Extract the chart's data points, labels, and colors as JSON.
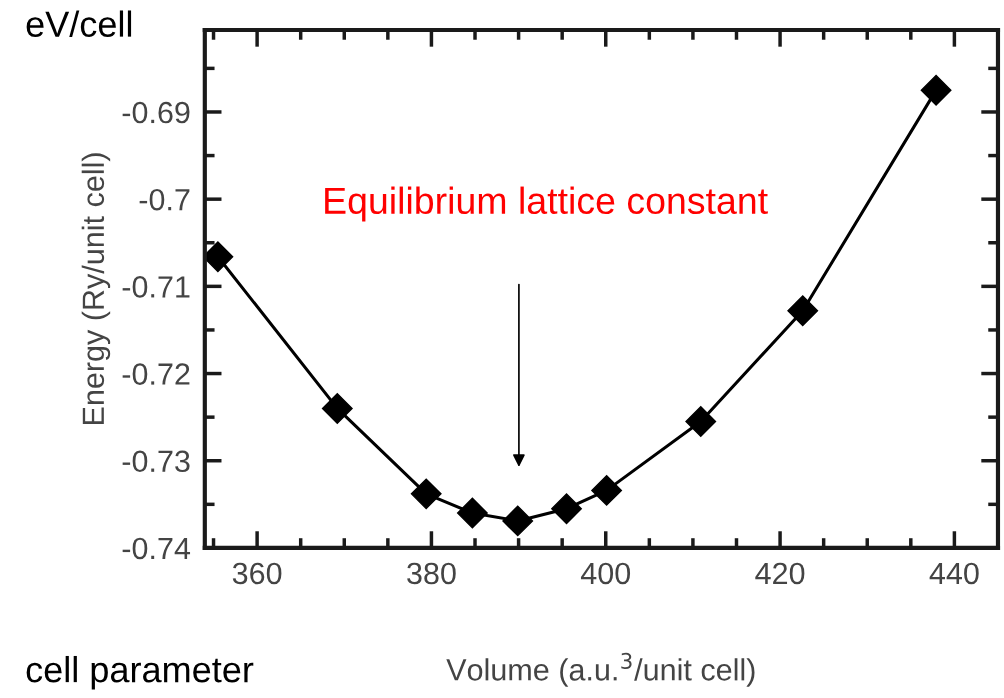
{
  "chart_data": {
    "type": "line",
    "xlabel": "Volume (a.u.$^{3}$/unit cell)",
    "ylabel": "Energy (Ry/unit cell)",
    "x": [
      355.5,
      369.2,
      379.4,
      384.7,
      389.9,
      395.5,
      400.1,
      410.9,
      422.6,
      437.9
    ],
    "series": [
      {
        "color": "#000000",
        "values": [
          -0.7066,
          -0.724,
          -0.7338,
          -0.736,
          -0.7369,
          -0.7355,
          -0.7334,
          -0.7255,
          -0.7128,
          -0.6875
        ]
      }
    ],
    "xlim": [
      354,
      445
    ],
    "ylim": [
      -0.74,
      -0.6806
    ],
    "xticks": [
      {
        "value": 355,
        "label": null
      },
      360,
      {
        "value": 365,
        "label": null
      },
      {
        "value": 370,
        "label": null
      },
      {
        "value": 375,
        "label": null
      },
      380,
      {
        "value": 385,
        "label": null
      },
      {
        "value": 390,
        "label": null
      },
      {
        "value": 395,
        "label": null
      },
      400,
      {
        "value": 405,
        "label": null
      },
      {
        "value": 410,
        "label": null
      },
      {
        "value": 415,
        "label": null
      },
      420,
      {
        "value": 425,
        "label": null
      },
      {
        "value": 430,
        "label": null
      },
      {
        "value": 435,
        "label": null
      },
      440
    ],
    "yticks": [
      -0.74,
      {
        "value": -0.735,
        "label": null
      },
      -0.73,
      {
        "value": -0.725,
        "label": null
      },
      -0.72,
      {
        "value": -0.715,
        "label": null
      },
      -0.71,
      {
        "value": -0.705,
        "label": null
      },
      -0.7,
      {
        "value": -0.695,
        "label": null
      },
      -0.69,
      {
        "value": -0.685,
        "label": null
      }
    ],
    "marker": "diamond",
    "line_style": "solid",
    "grid": false,
    "legend": false,
    "annotations": [
      "eV/cell",
      "cell parameter",
      "Equilibrium lattice constant"
    ]
  }
}
